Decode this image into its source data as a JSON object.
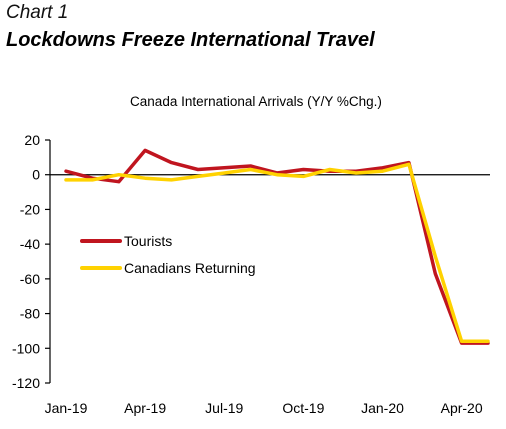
{
  "header": {
    "chart_label": "Chart 1",
    "title": "Lockdowns Freeze International Travel"
  },
  "chart_data": {
    "type": "line",
    "title": "Canada International Arrivals (Y/Y %Chg.)",
    "xlabel": "",
    "ylabel": "",
    "x": [
      "Jan-19",
      "Feb-19",
      "Mar-19",
      "Apr-19",
      "May-19",
      "Jun-19",
      "Jul-19",
      "Aug-19",
      "Sep-19",
      "Oct-19",
      "Nov-19",
      "Dec-19",
      "Jan-20",
      "Feb-20",
      "Mar-20",
      "Apr-20",
      "May-20"
    ],
    "x_tick_labels": [
      "Jan-19",
      "Apr-19",
      "Jul-19",
      "Oct-19",
      "Jan-20",
      "Apr-20"
    ],
    "x_tick_indices": [
      0,
      3,
      6,
      9,
      12,
      15
    ],
    "ylim": [
      -120,
      20
    ],
    "y_ticks": [
      20,
      0,
      -20,
      -40,
      -60,
      -80,
      -100,
      -120
    ],
    "grid": false,
    "legend_position": "left-middle",
    "series": [
      {
        "name": "Tourists",
        "color": "#c0151f",
        "values": [
          2,
          -2,
          -4,
          14,
          7,
          3,
          4,
          5,
          1,
          3,
          2,
          2,
          4,
          7,
          -57,
          -97,
          -97
        ]
      },
      {
        "name": "Canadians Returning",
        "color": "#ffd200",
        "values": [
          -3,
          -3,
          0,
          -2,
          -3,
          -1,
          1,
          3,
          0,
          -1,
          3,
          1,
          2,
          6,
          -47,
          -96,
          -96
        ]
      }
    ]
  }
}
